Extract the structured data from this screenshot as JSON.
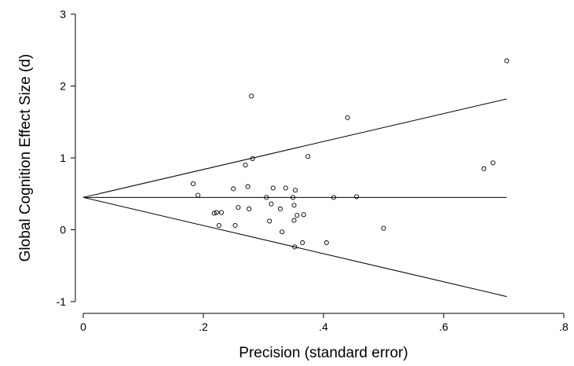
{
  "chart_data": {
    "type": "scatter",
    "title": "",
    "xlabel": "Precision (standard error)",
    "ylabel": "Global Cognition Effect Size (d)",
    "xlim": [
      0,
      0.8
    ],
    "ylim": [
      -1,
      3
    ],
    "x_ticks": [
      0,
      0.2,
      0.4,
      0.6,
      0.8
    ],
    "x_tick_labels": [
      "0",
      ".2",
      ".4",
      ".6",
      ".8"
    ],
    "y_ticks": [
      -1,
      0,
      1,
      2,
      3
    ],
    "y_tick_labels": [
      "-1",
      "0",
      "1",
      "2",
      "3"
    ],
    "grid": false,
    "colors": {
      "axis": "#000000",
      "points": "#000000",
      "lines": "#000000"
    },
    "reference_lines": [
      {
        "x": [
          0,
          0.705
        ],
        "y": [
          0.45,
          0.45
        ]
      },
      {
        "x": [
          0,
          0.705
        ],
        "y": [
          0.45,
          1.82
        ]
      },
      {
        "x": [
          0,
          0.705
        ],
        "y": [
          0.45,
          -0.93
        ]
      }
    ],
    "points": [
      {
        "x": 0.183,
        "y": 0.64
      },
      {
        "x": 0.191,
        "y": 0.48
      },
      {
        "x": 0.218,
        "y": 0.23
      },
      {
        "x": 0.222,
        "y": 0.24
      },
      {
        "x": 0.226,
        "y": 0.06
      },
      {
        "x": 0.23,
        "y": 0.24
      },
      {
        "x": 0.25,
        "y": 0.57
      },
      {
        "x": 0.253,
        "y": 0.06
      },
      {
        "x": 0.258,
        "y": 0.31
      },
      {
        "x": 0.27,
        "y": 0.9
      },
      {
        "x": 0.274,
        "y": 0.6
      },
      {
        "x": 0.276,
        "y": 0.29
      },
      {
        "x": 0.28,
        "y": 1.86
      },
      {
        "x": 0.282,
        "y": 0.99
      },
      {
        "x": 0.305,
        "y": 0.45
      },
      {
        "x": 0.31,
        "y": 0.12
      },
      {
        "x": 0.313,
        "y": 0.36
      },
      {
        "x": 0.316,
        "y": 0.58
      },
      {
        "x": 0.328,
        "y": 0.29
      },
      {
        "x": 0.331,
        "y": -0.03
      },
      {
        "x": 0.337,
        "y": 0.58
      },
      {
        "x": 0.349,
        "y": 0.45
      },
      {
        "x": 0.351,
        "y": 0.34
      },
      {
        "x": 0.351,
        "y": 0.13
      },
      {
        "x": 0.352,
        "y": -0.24
      },
      {
        "x": 0.353,
        "y": 0.55
      },
      {
        "x": 0.356,
        "y": 0.2
      },
      {
        "x": 0.365,
        "y": -0.18
      },
      {
        "x": 0.367,
        "y": 0.21
      },
      {
        "x": 0.374,
        "y": 1.02
      },
      {
        "x": 0.405,
        "y": -0.18
      },
      {
        "x": 0.417,
        "y": 0.45
      },
      {
        "x": 0.44,
        "y": 1.56
      },
      {
        "x": 0.455,
        "y": 0.46
      },
      {
        "x": 0.5,
        "y": 0.02
      },
      {
        "x": 0.667,
        "y": 0.85
      },
      {
        "x": 0.682,
        "y": 0.93
      },
      {
        "x": 0.705,
        "y": 2.35
      }
    ]
  }
}
